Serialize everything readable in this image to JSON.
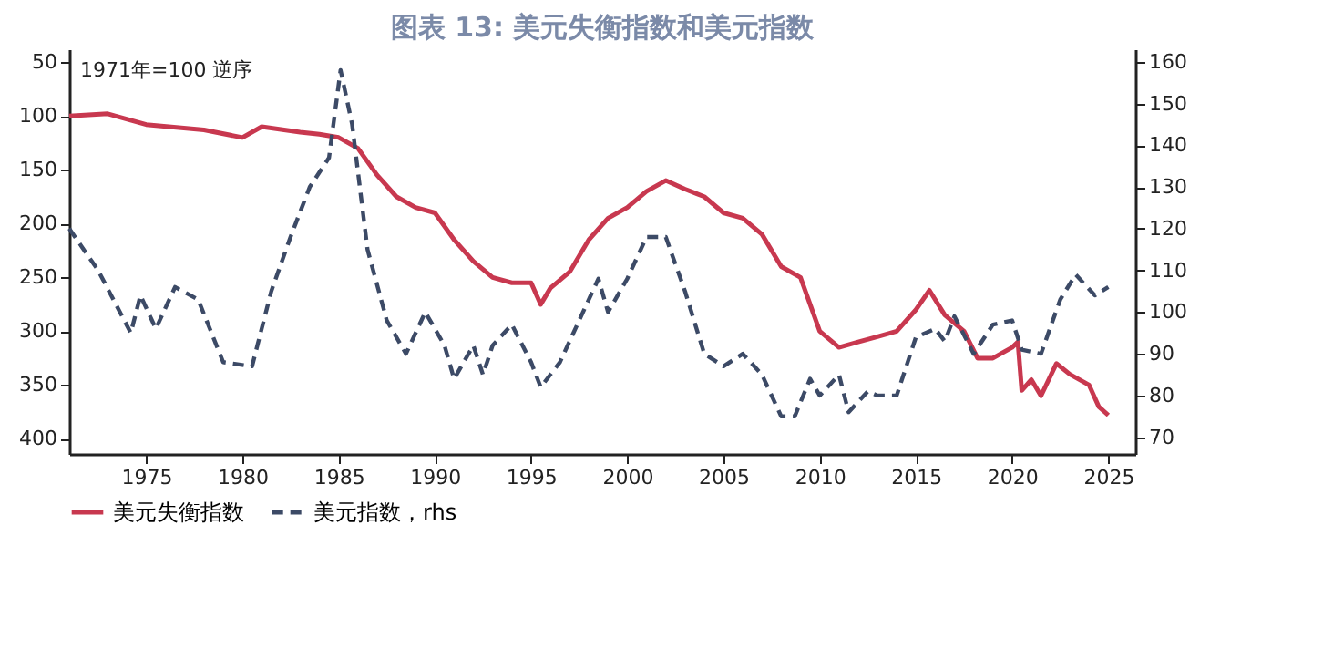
{
  "chart_data": {
    "type": "line",
    "title": "图表 13: 美元失衡指数和美元指数",
    "annotations": [
      "1971年=100 逆序"
    ],
    "xlim": [
      1971,
      2026.4
    ],
    "xticks": [
      1975,
      1980,
      1985,
      1990,
      1995,
      2000,
      2005,
      2010,
      2015,
      2020,
      2025
    ],
    "ylim": [
      414,
      38
    ],
    "yticks": [
      50,
      100,
      150,
      200,
      250,
      300,
      350,
      400
    ],
    "y2lim": [
      66,
      163
    ],
    "y2ticks": [
      70,
      80,
      90,
      100,
      110,
      120,
      130,
      140,
      150,
      160
    ],
    "grid": false,
    "legend": "bottom",
    "marker": "none",
    "series": [
      {
        "name": "美元失衡指数",
        "color": "#c8384f",
        "line_style": "solid",
        "x": [
          1971,
          1973,
          1975,
          1978,
          1980,
          1981,
          1983,
          1984,
          1985,
          1986,
          1987,
          1988,
          1989,
          1990,
          1991,
          1992,
          1993,
          1994,
          1995,
          1995.5,
          1996,
          1997,
          1998,
          1999,
          2000,
          2001,
          2002,
          2003,
          2004,
          2005,
          2006,
          2007,
          2008,
          2009,
          2010,
          2011,
          2012,
          2013,
          2014,
          2015,
          2015.7,
          2016.5,
          2017.5,
          2018.2,
          2019,
          2020,
          2020.3,
          2020.5,
          2021,
          2021.5,
          2022.3,
          2023,
          2024,
          2024.5,
          2025
        ],
        "values": [
          100,
          98,
          108,
          113,
          120,
          110,
          115,
          117,
          120,
          130,
          155,
          175,
          185,
          190,
          215,
          235,
          250,
          255,
          255,
          275,
          260,
          245,
          215,
          195,
          185,
          170,
          160,
          168,
          175,
          190,
          195,
          210,
          240,
          250,
          300,
          315,
          310,
          305,
          300,
          280,
          262,
          285,
          300,
          325,
          325,
          315,
          310,
          355,
          345,
          360,
          330,
          340,
          350,
          370,
          378
        ]
      },
      {
        "name": "美元指数，rhs",
        "color": "#3c4a66",
        "line_style": "dashed",
        "axis": "y2",
        "x": [
          1971,
          1972.5,
          1974.2,
          1974.7,
          1975.5,
          1976.5,
          1977.7,
          1979,
          1980.5,
          1981.5,
          1982.5,
          1983.5,
          1984.5,
          1985.1,
          1985.7,
          1986.5,
          1987.5,
          1988.5,
          1989.5,
          1990.5,
          1991,
          1992,
          1992.5,
          1993,
          1994,
          1995,
          1995.5,
          1996.5,
          1997.5,
          1998.5,
          1999,
          2000,
          2001,
          2002,
          2003,
          2004,
          2005,
          2006,
          2007,
          2008,
          2008.7,
          2009.5,
          2010,
          2011,
          2011.5,
          2012.5,
          2013,
          2014,
          2015,
          2016,
          2016.5,
          2017,
          2018,
          2019,
          2020,
          2020.5,
          2021.5,
          2022.5,
          2023.3,
          2024.3,
          2025
        ],
        "values": [
          120,
          110,
          95,
          104,
          96,
          106,
          103,
          88,
          87,
          105,
          118,
          130,
          137,
          158,
          145,
          115,
          98,
          90,
          100,
          92,
          84,
          92,
          85,
          92,
          97,
          88,
          82,
          88,
          98,
          108,
          100,
          108,
          118,
          118,
          105,
          90,
          87,
          90,
          85,
          75,
          75,
          84,
          80,
          85,
          76,
          81,
          80,
          80,
          94,
          96,
          93,
          99,
          90,
          97,
          98,
          91,
          90,
          103,
          109,
          104,
          106
        ]
      }
    ]
  }
}
